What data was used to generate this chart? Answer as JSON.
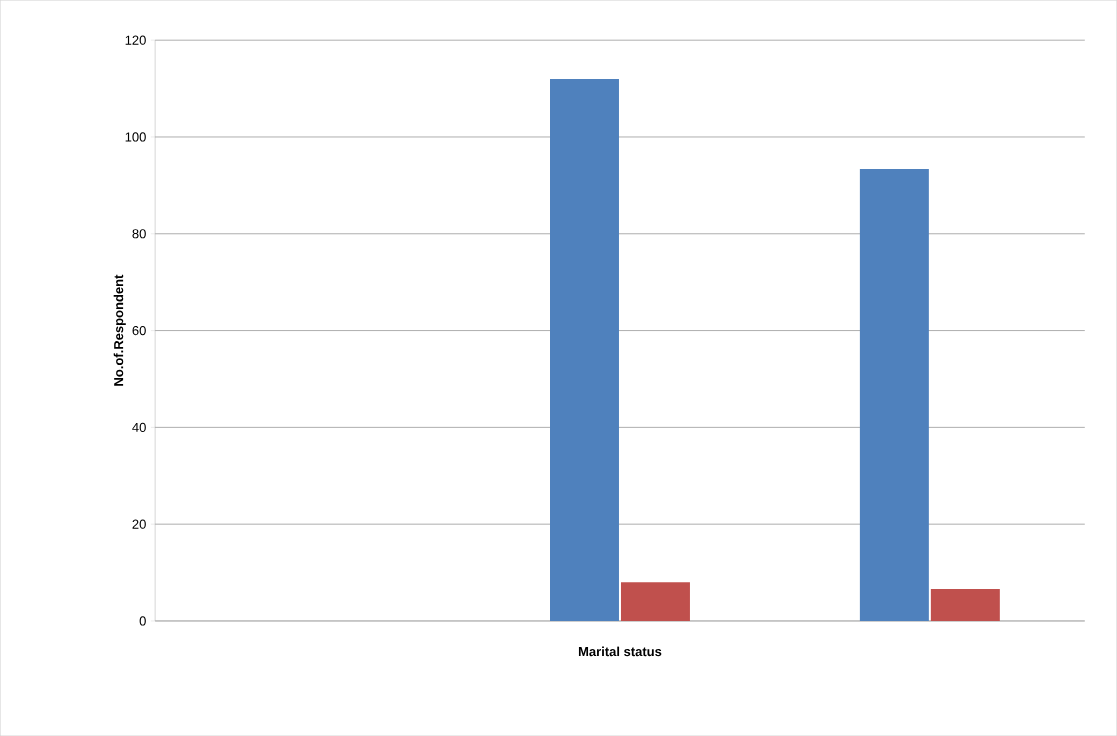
{
  "chart_data": {
    "type": "bar",
    "xlabel": "Marital status",
    "ylabel": "No.of.Respondent",
    "categories": [
      null,
      null,
      null
    ],
    "series": [
      {
        "color": "#4f81bd",
        "values": [
          null,
          112,
          93.4
        ]
      },
      {
        "color": "#c0504d",
        "values": [
          null,
          8,
          6.6
        ]
      }
    ],
    "ylim": [
      0,
      120
    ],
    "yticks": [
      0,
      20,
      40,
      60,
      80,
      100,
      120
    ],
    "grid": "y"
  }
}
